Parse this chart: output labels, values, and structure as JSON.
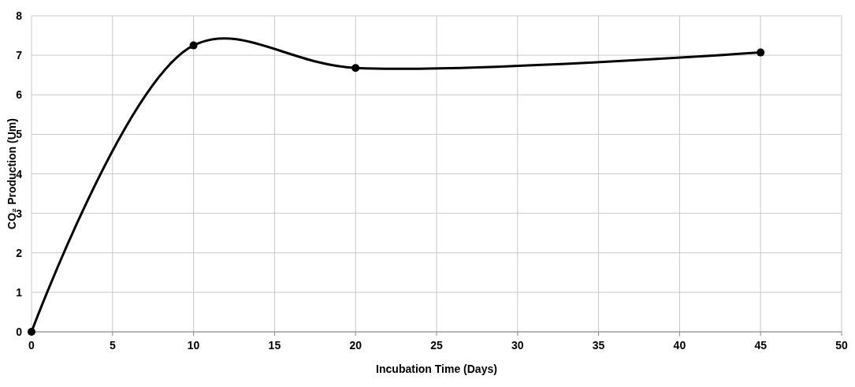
{
  "chart_data": {
    "type": "line",
    "xlabel": "Incubation Time (Days)",
    "ylabel": "CO₂ Production (Um)",
    "x": [
      0,
      10,
      20,
      45
    ],
    "series": [
      {
        "color": "#000000",
        "values": [
          0,
          7.25,
          6.68,
          7.07
        ]
      }
    ],
    "xlim": [
      0,
      50
    ],
    "xticks": [
      0,
      5,
      10,
      15,
      20,
      25,
      30,
      35,
      40,
      45,
      50
    ],
    "ylim": [
      0,
      8
    ],
    "yticks": [
      0,
      1,
      2,
      3,
      4,
      5,
      6,
      7,
      8
    ],
    "grid": true,
    "marker": "circle",
    "line_style": "solid"
  }
}
